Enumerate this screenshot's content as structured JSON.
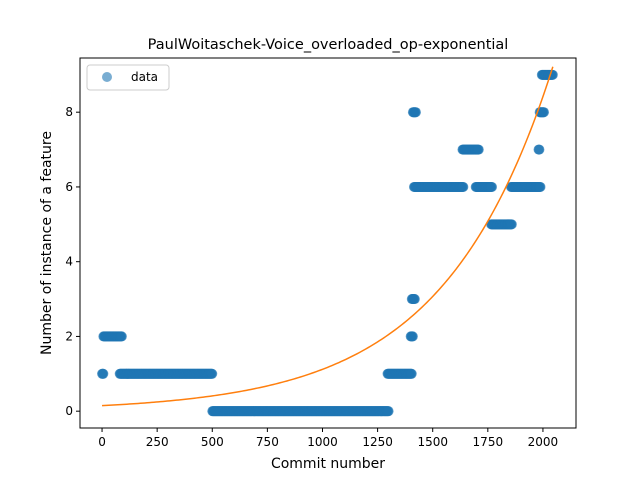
{
  "chart_data": {
    "type": "scatter",
    "title": "PaulWoitaschek-Voice_overloaded_op-exponential",
    "xlabel": "Commit number",
    "ylabel": "Number of instance of a feature",
    "xlim": [
      -100,
      2150
    ],
    "ylim": [
      -0.45,
      9.45
    ],
    "xticks": [
      0,
      250,
      500,
      750,
      1000,
      1250,
      1500,
      1750,
      2000
    ],
    "yticks": [
      0,
      2,
      4,
      6,
      8
    ],
    "legend": {
      "placement": "top-left",
      "entries": [
        "data"
      ]
    },
    "colors": {
      "data": "#1f77b4",
      "fit": "#ff7f0e"
    },
    "series": [
      {
        "name": "data",
        "kind": "scatter",
        "segments": [
          {
            "x_start": 0,
            "x_end": 6,
            "y": 1
          },
          {
            "x_start": 6,
            "x_end": 90,
            "y": 2
          },
          {
            "x_start": 80,
            "x_end": 500,
            "y": 1
          },
          {
            "x_start": 500,
            "x_end": 1300,
            "y": 0
          },
          {
            "x_start": 1295,
            "x_end": 1405,
            "y": 1
          },
          {
            "x_start": 1400,
            "x_end": 1410,
            "y": 2
          },
          {
            "x_start": 1405,
            "x_end": 1420,
            "y": 3
          },
          {
            "x_start": 1410,
            "x_end": 1425,
            "y": 8
          },
          {
            "x_start": 1415,
            "x_end": 1640,
            "y": 6
          },
          {
            "x_start": 1635,
            "x_end": 1710,
            "y": 7
          },
          {
            "x_start": 1695,
            "x_end": 1770,
            "y": 6
          },
          {
            "x_start": 1765,
            "x_end": 1860,
            "y": 5
          },
          {
            "x_start": 1855,
            "x_end": 1990,
            "y": 6
          },
          {
            "x_start": 1980,
            "x_end": 1985,
            "y": 7
          },
          {
            "x_start": 1985,
            "x_end": 2005,
            "y": 8
          },
          {
            "x_start": 1995,
            "x_end": 2045,
            "y": 9
          }
        ]
      },
      {
        "kind": "line",
        "model": "exponential",
        "a": 0.149,
        "b": 0.002017,
        "x_range": [
          0,
          2045
        ]
      }
    ]
  }
}
